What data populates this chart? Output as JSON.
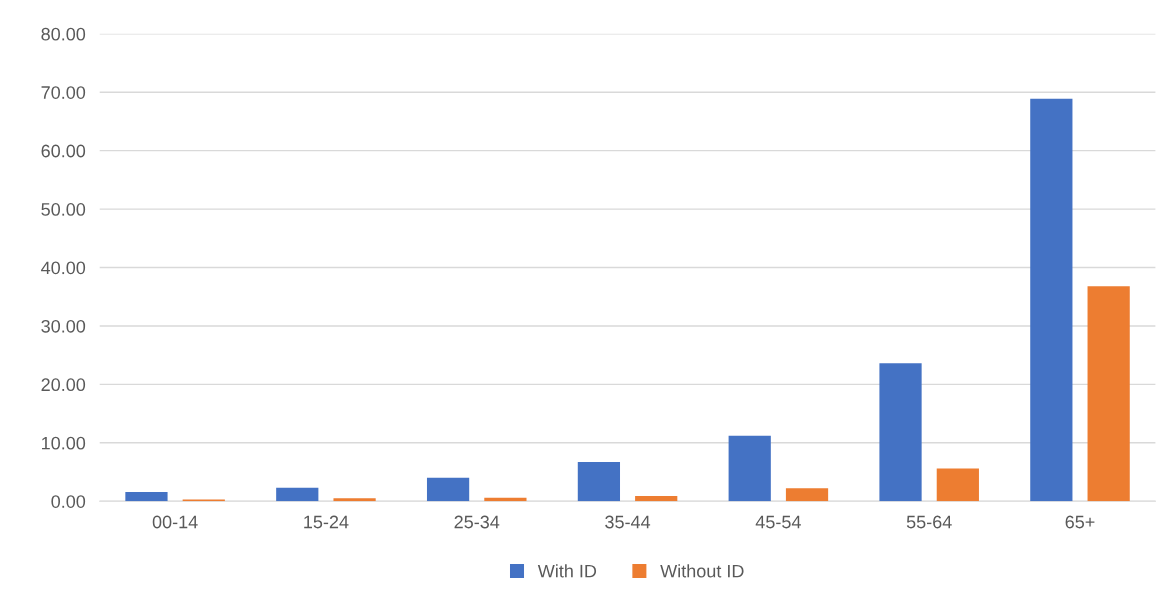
{
  "chart_data": {
    "type": "bar",
    "categories": [
      "00-14",
      "15-24",
      "25-34",
      "35-44",
      "45-54",
      "55-64",
      "65+"
    ],
    "series": [
      {
        "name": "With ID",
        "color": "#4472c4",
        "values": [
          1.6,
          2.3,
          4.0,
          6.7,
          11.2,
          23.6,
          68.9
        ]
      },
      {
        "name": "Without ID",
        "color": "#ed7d31",
        "values": [
          0.3,
          0.5,
          0.6,
          0.9,
          2.2,
          5.6,
          36.8
        ]
      }
    ],
    "ylim": [
      0,
      80
    ],
    "yticks": [
      {
        "value": 0,
        "label": "0.00"
      },
      {
        "value": 10,
        "label": "10.00"
      },
      {
        "value": 20,
        "label": "20.00"
      },
      {
        "value": 30,
        "label": "30.00"
      },
      {
        "value": 40,
        "label": "40.00"
      },
      {
        "value": 50,
        "label": "50.00"
      },
      {
        "value": 60,
        "label": "60.00"
      },
      {
        "value": 70,
        "label": "70.00"
      },
      {
        "value": 80,
        "label": "80.00"
      }
    ],
    "grid": "y",
    "legend": "bottom"
  }
}
